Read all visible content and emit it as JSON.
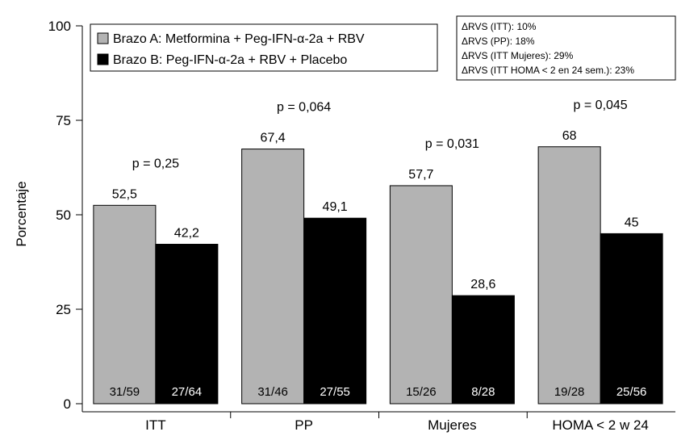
{
  "chart_data": {
    "type": "bar",
    "ylabel": "Porcentaje",
    "ylim": [
      0,
      100
    ],
    "yticks": [
      "0",
      "25",
      "50",
      "75",
      "100"
    ],
    "categories": [
      "ITT",
      "PP",
      "Mujeres",
      "HOMA < 2 w 24"
    ],
    "series": [
      {
        "name": "Brazo A: Metformina + Peg-IFN-α-2a + RBV",
        "color": "#b3b3b3",
        "values": [
          52.5,
          67.4,
          57.7,
          68
        ],
        "labels": [
          "52,5",
          "67,4",
          "57,7",
          "68"
        ],
        "counts": [
          "31/59",
          "31/46",
          "15/26",
          "19/28"
        ]
      },
      {
        "name": "Brazo B: Peg-IFN-α-2a + RBV + Placebo",
        "color": "#000000",
        "values": [
          42.2,
          49.1,
          28.6,
          45
        ],
        "labels": [
          "42,2",
          "49,1",
          "28,6",
          "45"
        ],
        "counts": [
          "27/64",
          "27/55",
          "8/28",
          "25/56"
        ]
      }
    ],
    "pvalues": [
      "p = 0,25",
      "p = 0,064",
      "p = 0,031",
      "p = 0,045"
    ],
    "annotations": [
      "ΔRVS (ITT): 10%",
      "ΔRVS (PP): 18%",
      "ΔRVS (ITT Mujeres): 29%",
      "ΔRVS (ITT HOMA < 2 en 24 sem.): 23%"
    ],
    "legend_position": "top-left"
  }
}
